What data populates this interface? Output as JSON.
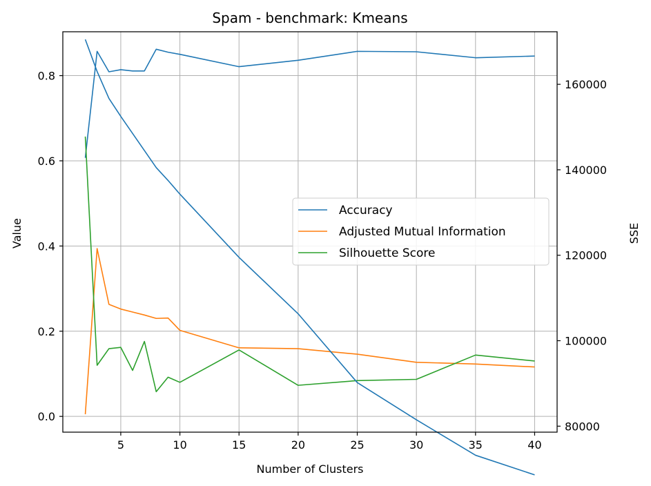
{
  "chart_data": {
    "type": "line",
    "title": "Spam - benchmark: Kmeans",
    "xlabel": "Number of Clusters",
    "ylabel": "Value",
    "y2label": "SSE",
    "xlim": [
      0.1,
      41.9
    ],
    "ylim": [
      -0.037,
      0.903
    ],
    "y2lim": [
      78600,
      172300
    ],
    "xticks": [
      5,
      10,
      15,
      20,
      25,
      30,
      35,
      40
    ],
    "yticks": [
      0.0,
      0.2,
      0.4,
      0.6,
      0.8
    ],
    "ytick_labels": [
      "0.0",
      "0.2",
      "0.4",
      "0.6",
      "0.8"
    ],
    "y2ticks": [
      80000,
      100000,
      120000,
      140000,
      160000
    ],
    "grid": true,
    "legend_position": "center-right",
    "series": [
      {
        "name": "Accuracy",
        "axis": "left",
        "color": "#1f77b4",
        "x": [
          2,
          3,
          4,
          5,
          6,
          7,
          8,
          9,
          10,
          15,
          20,
          25,
          30,
          35,
          40
        ],
        "values": [
          0.607,
          0.857,
          0.809,
          0.814,
          0.811,
          0.811,
          0.862,
          0.855,
          0.85,
          0.821,
          0.836,
          0.857,
          0.856,
          0.842,
          0.846
        ]
      },
      {
        "name": "Adjusted Mutual Information",
        "axis": "left",
        "color": "#ff7f0e",
        "x": [
          2,
          3,
          4,
          5,
          6,
          7,
          8,
          9,
          10,
          15,
          20,
          25,
          30,
          35,
          40
        ],
        "values": [
          0.005,
          0.394,
          0.263,
          0.252,
          0.245,
          0.238,
          0.23,
          0.231,
          0.202,
          0.161,
          0.159,
          0.146,
          0.127,
          0.123,
          0.116
        ]
      },
      {
        "name": "Silhouette Score",
        "axis": "left",
        "color": "#2ca02c",
        "x": [
          2,
          3,
          4,
          5,
          6,
          7,
          8,
          9,
          10,
          15,
          20,
          25,
          30,
          35,
          40
        ],
        "values": [
          0.657,
          0.12,
          0.159,
          0.162,
          0.108,
          0.176,
          0.058,
          0.092,
          0.08,
          0.156,
          0.073,
          0.084,
          0.087,
          0.144,
          0.13
        ]
      },
      {
        "axis": "right",
        "color": "#1f77b4",
        "x": [
          2,
          3,
          4,
          5,
          6,
          7,
          8,
          9,
          10,
          15,
          20,
          25,
          30,
          35,
          40
        ],
        "values": [
          170500,
          163000,
          156700,
          152500,
          148500,
          144500,
          140500,
          137500,
          134300,
          119500,
          106300,
          90200,
          81500,
          73200,
          68600
        ]
      }
    ]
  }
}
